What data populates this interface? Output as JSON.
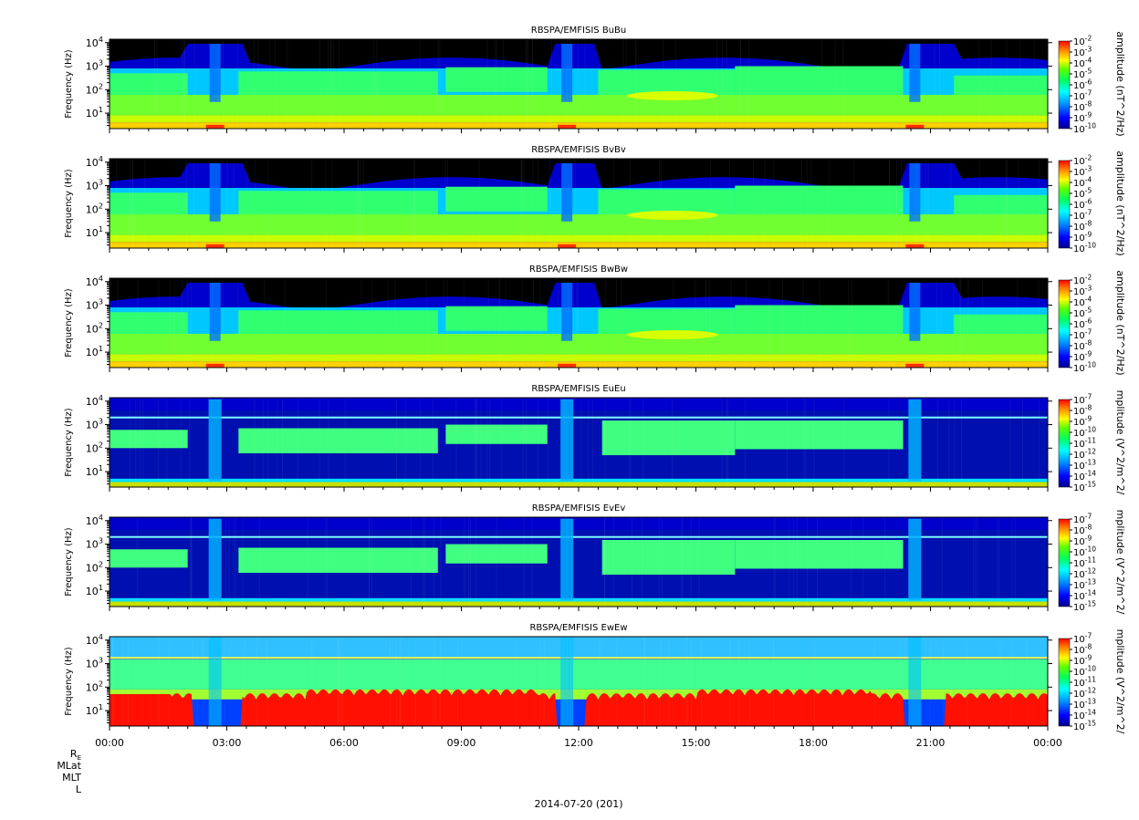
{
  "chart_data": {
    "type": "heatmap",
    "date_label": "2014-07-20 (201)",
    "x": {
      "ticks": [
        "00:00",
        "03:00",
        "06:00",
        "09:00",
        "12:00",
        "15:00",
        "18:00",
        "21:00",
        "00:00"
      ],
      "range_hours": [
        0,
        24
      ],
      "orbit_labels": [
        "R_E",
        "MLat",
        "MLT",
        "L"
      ]
    },
    "panels": [
      {
        "title": "RBSPA/EMFISIS  BuBu",
        "ylabel": "Frequency (Hz)",
        "y_scale": "log",
        "y_ticks": [
          "10^1",
          "10^2",
          "10^3",
          "10^4"
        ],
        "colorbar_label": "amplitude (nT^2/Hz)",
        "colorbar_ticks": [
          "10^-2",
          "10^-3",
          "10^-4",
          "10^-5",
          "10^-6",
          "10^-7",
          "10^-8",
          "10^-9",
          "10^-10"
        ],
        "kind": "B"
      },
      {
        "title": "RBSPA/EMFISIS  BvBv",
        "ylabel": "Frequency (Hz)",
        "y_scale": "log",
        "y_ticks": [
          "10^1",
          "10^2",
          "10^3",
          "10^4"
        ],
        "colorbar_label": "amplitude (nT^2/Hz)",
        "colorbar_ticks": [
          "10^-2",
          "10^-3",
          "10^-4",
          "10^-5",
          "10^-6",
          "10^-7",
          "10^-8",
          "10^-9",
          "10^-10"
        ],
        "kind": "B"
      },
      {
        "title": "RBSPA/EMFISIS  BwBw",
        "ylabel": "Frequency (Hz)",
        "y_scale": "log",
        "y_ticks": [
          "10^1",
          "10^2",
          "10^3",
          "10^4"
        ],
        "colorbar_label": "amplitude (nT^2/Hz)",
        "colorbar_ticks": [
          "10^-2",
          "10^-3",
          "10^-4",
          "10^-5",
          "10^-6",
          "10^-7",
          "10^-8",
          "10^-9",
          "10^-10"
        ],
        "kind": "B"
      },
      {
        "title": "RBSPA/EMFISIS  EuEu",
        "ylabel": "Frequency (Hz)",
        "y_scale": "log",
        "y_ticks": [
          "10^1",
          "10^2",
          "10^3",
          "10^4"
        ],
        "colorbar_label": "mplitude (V^2/m^2/",
        "colorbar_ticks": [
          "10^-7",
          "10^-8",
          "10^-9",
          "10^-10",
          "10^-11",
          "10^-12",
          "10^-13",
          "10^-14",
          "10^-15"
        ],
        "kind": "E"
      },
      {
        "title": "RBSPA/EMFISIS  EvEv",
        "ylabel": "Frequency (Hz)",
        "y_scale": "log",
        "y_ticks": [
          "10^1",
          "10^2",
          "10^3",
          "10^4"
        ],
        "colorbar_label": "mplitude (V^2/m^2/",
        "colorbar_ticks": [
          "10^-7",
          "10^-8",
          "10^-9",
          "10^-10",
          "10^-11",
          "10^-12",
          "10^-13",
          "10^-14",
          "10^-15"
        ],
        "kind": "E"
      },
      {
        "title": "RBSPA/EMFISIS  EwEw",
        "ylabel": "Frequency (Hz)",
        "y_scale": "log",
        "y_ticks": [
          "10^1",
          "10^2",
          "10^3",
          "10^4"
        ],
        "colorbar_label": "mplitude (V^2/m^2/",
        "colorbar_ticks": [
          "10^-7",
          "10^-8",
          "10^-9",
          "10^-10",
          "10^-11",
          "10^-12",
          "10^-13",
          "10^-14",
          "10^-15"
        ],
        "kind": "Ew"
      }
    ],
    "colormap": [
      "#000088",
      "#0000ff",
      "#0088ff",
      "#00ffff",
      "#00ff88",
      "#00ff00",
      "#88ff00",
      "#ffff00",
      "#ff8800",
      "#ff0000"
    ]
  }
}
